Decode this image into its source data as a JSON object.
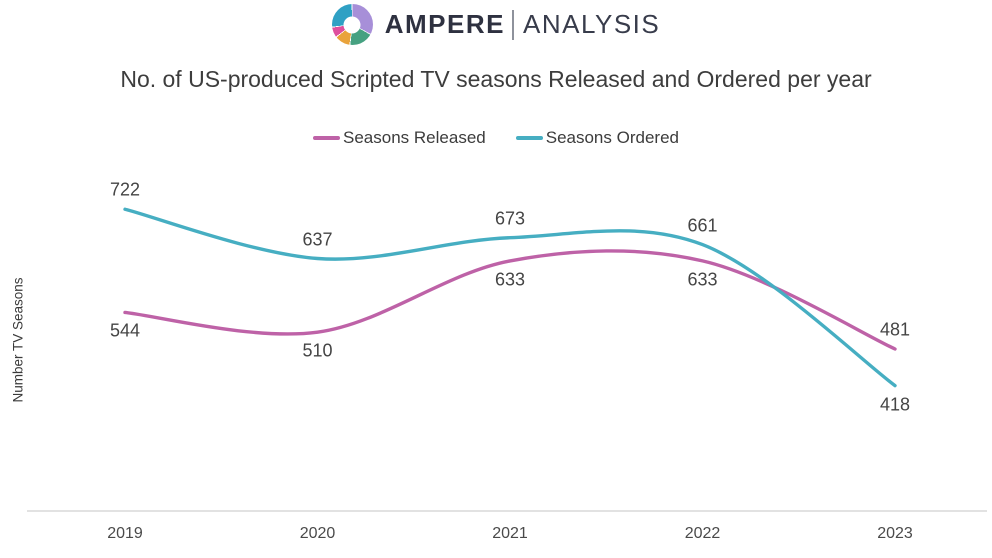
{
  "brand": {
    "left": "AMPERE",
    "right": "ANALYSIS",
    "logo_colors": {
      "purple": "#a78fd8",
      "green": "#46a181",
      "orange": "#e9a33c",
      "pink": "#de4f9d",
      "teal": "#2fa0c4"
    }
  },
  "chart_data": {
    "type": "line",
    "title": "No. of US-produced Scripted TV seasons Released and Ordered per year",
    "xlabel": "",
    "ylabel": "Number TV Seasons",
    "categories": [
      "2019",
      "2020",
      "2021",
      "2022",
      "2023"
    ],
    "series": [
      {
        "name": "Seasons Released",
        "color": "#be62a7",
        "values": [
          544,
          510,
          633,
          633,
          481
        ],
        "label_positions": [
          "below",
          "below",
          "below",
          "below",
          "above"
        ]
      },
      {
        "name": "Seasons Ordered",
        "color": "#46aec2",
        "values": [
          722,
          637,
          673,
          661,
          418
        ],
        "label_positions": [
          "above",
          "above",
          "above",
          "above",
          "below"
        ]
      }
    ],
    "ylim": [
      400,
      760
    ],
    "grid": false,
    "smooth": true,
    "legend_position": "top",
    "axis_line_color": "#e2e2e2"
  }
}
